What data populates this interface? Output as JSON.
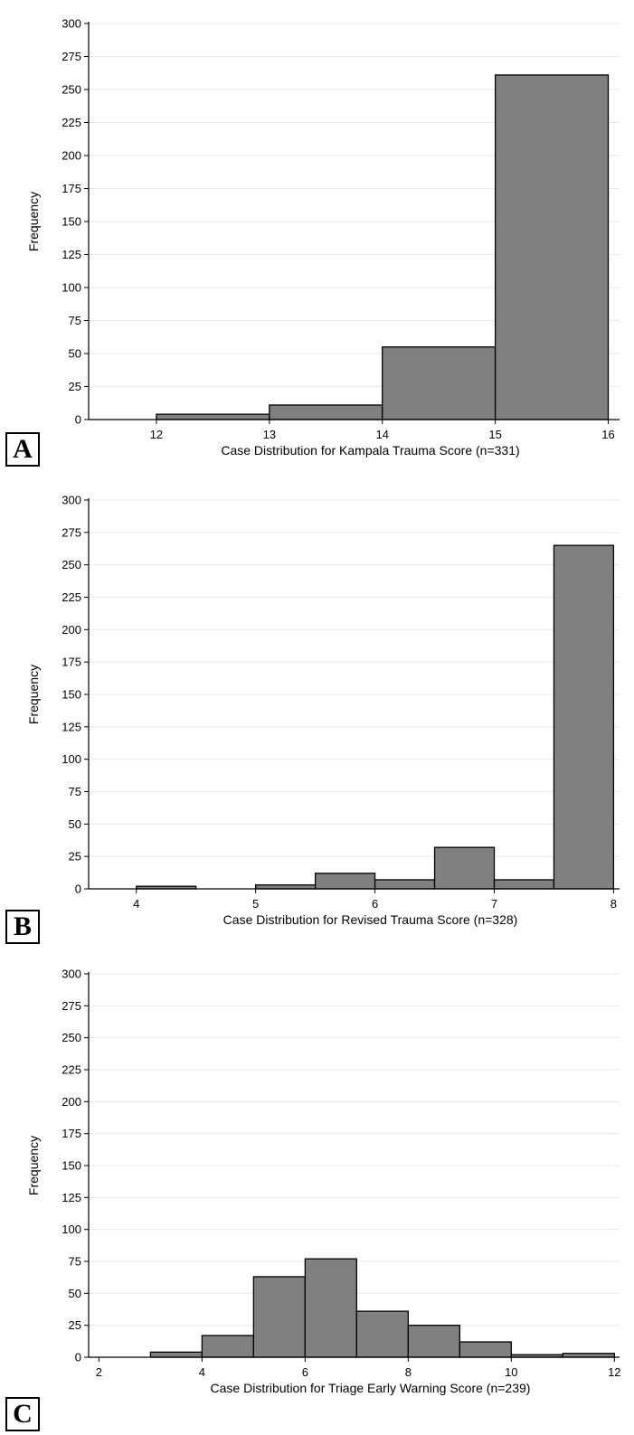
{
  "chart_data": [
    {
      "type": "bar",
      "panel_label": "A",
      "xlabel": "Case Distribution for Kampala Trauma Score (n=331)",
      "ylabel": "Frequency",
      "xlim": [
        11.4,
        16.1
      ],
      "ylim": [
        0,
        300
      ],
      "yticks": [
        0,
        25,
        50,
        75,
        100,
        125,
        150,
        175,
        200,
        225,
        250,
        275,
        300
      ],
      "xticks": [
        12,
        13,
        14,
        15,
        16
      ],
      "bin_edges": [
        12,
        13,
        14,
        15,
        16
      ],
      "values": [
        4,
        11,
        55,
        261
      ],
      "grid": true,
      "bar_color": "#808080"
    },
    {
      "type": "bar",
      "panel_label": "B",
      "xlabel": "Case Distribution for Revised Trauma Score (n=328)",
      "ylabel": "Frequency",
      "xlim": [
        3.6,
        8.05
      ],
      "ylim": [
        0,
        300
      ],
      "yticks": [
        0,
        25,
        50,
        75,
        100,
        125,
        150,
        175,
        200,
        225,
        250,
        275,
        300
      ],
      "xticks": [
        4,
        5,
        6,
        7,
        8
      ],
      "bin_edges": [
        4,
        4.5,
        5,
        5.5,
        6,
        6.5,
        7,
        7.5,
        8
      ],
      "values": [
        2,
        0,
        3,
        12,
        7,
        32,
        7,
        265
      ],
      "grid": true,
      "bar_color": "#808080"
    },
    {
      "type": "bar",
      "panel_label": "C",
      "xlabel": "Case Distribution for Triage Early Warning Score (n=239)",
      "ylabel": "Frequency",
      "xlim": [
        1.8,
        12.1
      ],
      "ylim": [
        0,
        300
      ],
      "yticks": [
        0,
        25,
        50,
        75,
        100,
        125,
        150,
        175,
        200,
        225,
        250,
        275,
        300
      ],
      "xticks": [
        2,
        4,
        6,
        8,
        10,
        12
      ],
      "bin_edges": [
        3,
        4,
        5,
        6,
        7,
        8,
        9,
        10,
        11,
        12
      ],
      "values": [
        4,
        17,
        63,
        77,
        36,
        25,
        12,
        2,
        3
      ],
      "grid": true,
      "bar_color": "#808080"
    }
  ]
}
